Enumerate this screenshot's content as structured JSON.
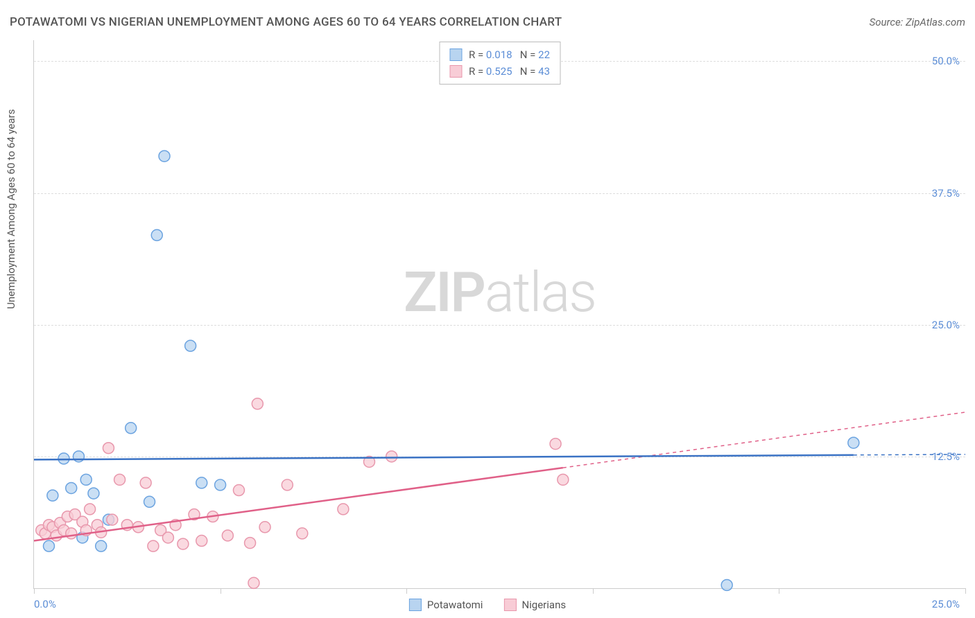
{
  "header": {
    "title": "POTAWATOMI VS NIGERIAN UNEMPLOYMENT AMONG AGES 60 TO 64 YEARS CORRELATION CHART",
    "source": "Source: ZipAtlas.com"
  },
  "watermark": {
    "bold": "ZIP",
    "light": "atlas"
  },
  "chart": {
    "type": "scatter",
    "yaxis_title": "Unemployment Among Ages 60 to 64 years",
    "xlim": [
      0,
      25
    ],
    "ylim": [
      0,
      52
    ],
    "ytick_labels": [
      "50.0%",
      "37.5%",
      "25.0%",
      "12.5%"
    ],
    "ytick_values": [
      50,
      37.5,
      25,
      12.5
    ],
    "xtick_values": [
      0,
      5,
      10,
      15,
      20,
      25
    ],
    "xaxis_start": "0.0%",
    "xaxis_end": "25.0%",
    "grid_color": "#dddddd",
    "axis_color": "#cccccc",
    "marker_radius": 8,
    "marker_stroke_width": 1.5,
    "series": [
      {
        "name": "Potawatomi",
        "fill_color": "#b8d4f0",
        "stroke_color": "#6ba3e0",
        "r": "0.018",
        "n": "22",
        "trend": {
          "y1": 12.2,
          "y2": 12.7,
          "observed_xmax": 22
        },
        "points": [
          [
            0.4,
            4.0
          ],
          [
            0.5,
            8.8
          ],
          [
            0.8,
            12.3
          ],
          [
            1.0,
            9.5
          ],
          [
            1.2,
            12.5
          ],
          [
            1.3,
            4.8
          ],
          [
            1.4,
            10.3
          ],
          [
            1.6,
            9.0
          ],
          [
            1.8,
            4.0
          ],
          [
            2.0,
            6.5
          ],
          [
            2.6,
            15.2
          ],
          [
            3.1,
            8.2
          ],
          [
            3.3,
            33.5
          ],
          [
            3.5,
            41.0
          ],
          [
            4.2,
            23.0
          ],
          [
            4.5,
            10.0
          ],
          [
            5.0,
            9.8
          ],
          [
            18.6,
            0.3
          ],
          [
            22.0,
            13.8
          ]
        ]
      },
      {
        "name": "Nigerians",
        "fill_color": "#f8ccd6",
        "stroke_color": "#e897ac",
        "r": "0.525",
        "n": "43",
        "trend": {
          "y1": 4.5,
          "y2": 16.7,
          "observed_xmax": 14.2
        },
        "points": [
          [
            0.2,
            5.5
          ],
          [
            0.3,
            5.2
          ],
          [
            0.4,
            6.0
          ],
          [
            0.5,
            5.8
          ],
          [
            0.6,
            5.0
          ],
          [
            0.7,
            6.2
          ],
          [
            0.8,
            5.5
          ],
          [
            0.9,
            6.8
          ],
          [
            1.0,
            5.2
          ],
          [
            1.1,
            7.0
          ],
          [
            1.3,
            6.3
          ],
          [
            1.4,
            5.5
          ],
          [
            1.5,
            7.5
          ],
          [
            1.7,
            6.0
          ],
          [
            1.8,
            5.3
          ],
          [
            2.0,
            13.3
          ],
          [
            2.1,
            6.5
          ],
          [
            2.3,
            10.3
          ],
          [
            2.5,
            6.0
          ],
          [
            2.8,
            5.8
          ],
          [
            3.0,
            10.0
          ],
          [
            3.2,
            4.0
          ],
          [
            3.4,
            5.5
          ],
          [
            3.6,
            4.8
          ],
          [
            3.8,
            6.0
          ],
          [
            4.0,
            4.2
          ],
          [
            4.3,
            7.0
          ],
          [
            4.5,
            4.5
          ],
          [
            4.8,
            6.8
          ],
          [
            5.2,
            5.0
          ],
          [
            5.5,
            9.3
          ],
          [
            5.8,
            4.3
          ],
          [
            5.9,
            0.5
          ],
          [
            6.0,
            17.5
          ],
          [
            6.2,
            5.8
          ],
          [
            6.8,
            9.8
          ],
          [
            7.2,
            5.2
          ],
          [
            8.3,
            7.5
          ],
          [
            9.0,
            12.0
          ],
          [
            9.6,
            12.5
          ],
          [
            14.0,
            13.7
          ],
          [
            14.2,
            10.3
          ]
        ]
      }
    ]
  }
}
